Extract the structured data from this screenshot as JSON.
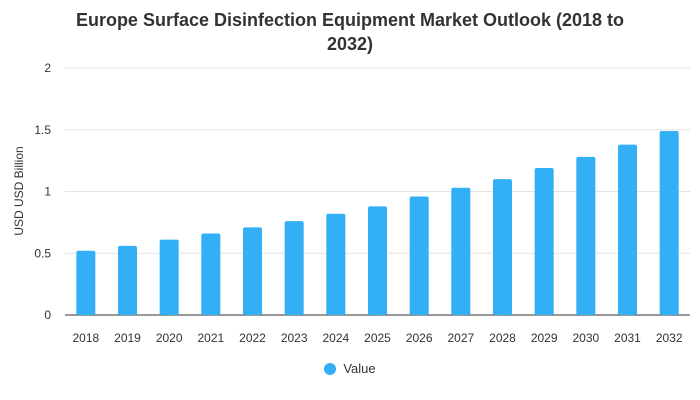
{
  "chart_data": {
    "type": "bar",
    "title_lines": [
      "Europe Surface Disinfection Equipment Market Outlook (2018 to",
      "2032)"
    ],
    "title": "Europe Surface Disinfection Equipment Market Outlook (2018 to 2032)",
    "xlabel": "",
    "ylabel": "USD USD Billion",
    "ylim": [
      0,
      2
    ],
    "yticks": [
      "0",
      "0.5",
      "1",
      "1.5",
      "2"
    ],
    "grid": true,
    "legend_position": "bottom",
    "categories": [
      "2018",
      "2019",
      "2020",
      "2021",
      "2022",
      "2023",
      "2024",
      "2025",
      "2026",
      "2027",
      "2028",
      "2029",
      "2030",
      "2031",
      "2032"
    ],
    "series": [
      {
        "name": "Value",
        "color": "#33b0f5",
        "values": [
          0.52,
          0.56,
          0.61,
          0.66,
          0.71,
          0.76,
          0.82,
          0.88,
          0.96,
          1.03,
          1.1,
          1.19,
          1.28,
          1.38,
          1.49
        ]
      }
    ]
  }
}
